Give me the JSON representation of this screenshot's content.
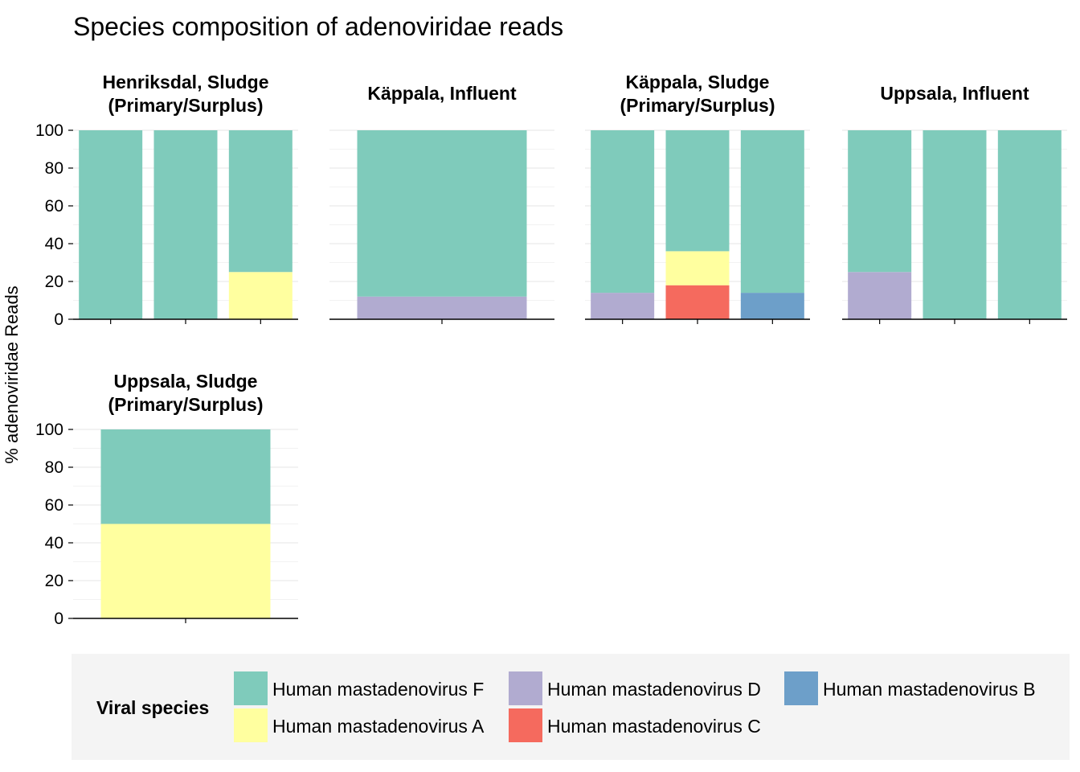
{
  "chart_data": {
    "type": "bar",
    "stacked": true,
    "title": "Species composition of adenoviridae reads",
    "ylabel": "% adenoviridae Reads",
    "xlabel": "",
    "ylim": [
      0,
      100
    ],
    "yticks": [
      0,
      20,
      40,
      60,
      80,
      100
    ],
    "grid": true,
    "legend_placement": "bottom",
    "legend": {
      "title": "Viral species",
      "entries": [
        {
          "name": "Human mastadenovirus F",
          "color": "#7fcbbb"
        },
        {
          "name": "Human mastadenovirus D",
          "color": "#b1abd0"
        },
        {
          "name": "Human mastadenovirus B",
          "color": "#6d9fc9"
        },
        {
          "name": "Human mastadenovirus A",
          "color": "#ffff9f"
        },
        {
          "name": "Human mastadenovirus C",
          "color": "#f56a5e"
        }
      ]
    },
    "facets": [
      {
        "title_lines": [
          "Henriksdal, Sludge",
          "(Primary/Surplus)"
        ],
        "bars": [
          [
            {
              "species": "Human mastadenovirus F",
              "value": 100
            }
          ],
          [
            {
              "species": "Human mastadenovirus F",
              "value": 100
            }
          ],
          [
            {
              "species": "Human mastadenovirus A",
              "value": 25
            },
            {
              "species": "Human mastadenovirus F",
              "value": 75
            }
          ]
        ]
      },
      {
        "title_lines": [
          "Käppala, Influent"
        ],
        "bars": [
          [
            {
              "species": "Human mastadenovirus D",
              "value": 12
            },
            {
              "species": "Human mastadenovirus F",
              "value": 88
            }
          ]
        ]
      },
      {
        "title_lines": [
          "Käppala, Sludge",
          "(Primary/Surplus)"
        ],
        "bars": [
          [
            {
              "species": "Human mastadenovirus D",
              "value": 14
            },
            {
              "species": "Human mastadenovirus F",
              "value": 86
            }
          ],
          [
            {
              "species": "Human mastadenovirus C",
              "value": 18
            },
            {
              "species": "Human mastadenovirus A",
              "value": 18
            },
            {
              "species": "Human mastadenovirus F",
              "value": 64
            }
          ],
          [
            {
              "species": "Human mastadenovirus B",
              "value": 14
            },
            {
              "species": "Human mastadenovirus F",
              "value": 86
            }
          ]
        ]
      },
      {
        "title_lines": [
          "Uppsala, Influent"
        ],
        "bars": [
          [
            {
              "species": "Human mastadenovirus D",
              "value": 25
            },
            {
              "species": "Human mastadenovirus F",
              "value": 75
            }
          ],
          [
            {
              "species": "Human mastadenovirus F",
              "value": 100
            }
          ],
          [
            {
              "species": "Human mastadenovirus F",
              "value": 100
            }
          ]
        ]
      },
      {
        "title_lines": [
          "Uppsala, Sludge",
          "(Primary/Surplus)"
        ],
        "bars": [
          [
            {
              "species": "Human mastadenovirus A",
              "value": 50
            },
            {
              "species": "Human mastadenovirus F",
              "value": 50
            }
          ]
        ]
      }
    ]
  }
}
